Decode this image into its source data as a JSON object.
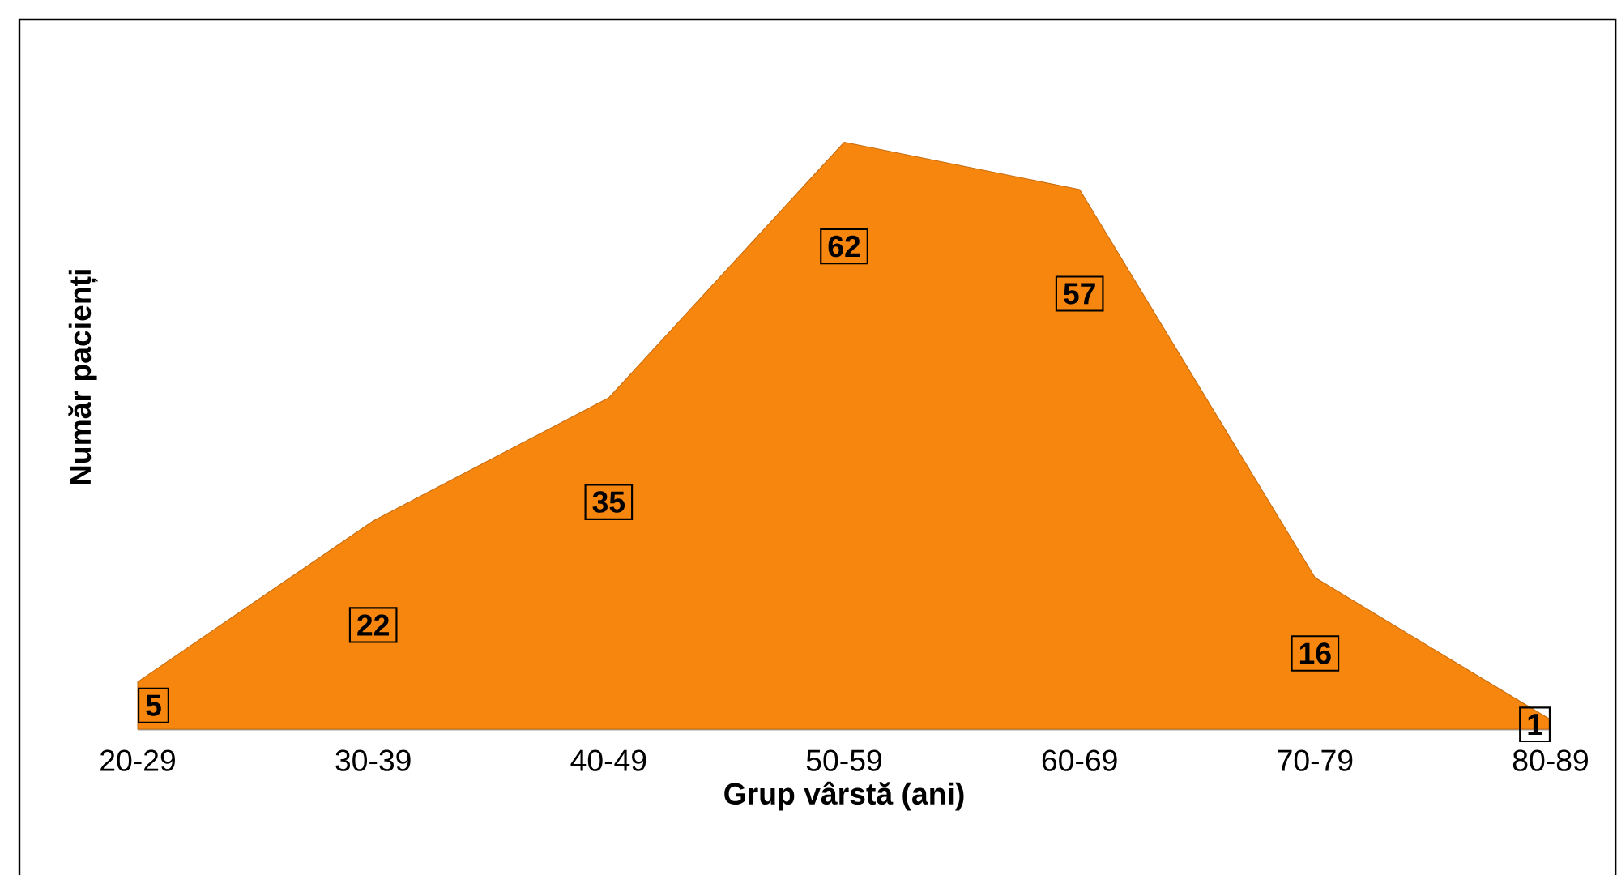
{
  "chart_data": {
    "type": "area",
    "xlabel": "Grup vârstă (ani)",
    "ylabel": "Număr pacienți",
    "categories": [
      "20-29",
      "30-39",
      "40-49",
      "50-59",
      "60-69",
      "70-79",
      "80-89"
    ],
    "values": [
      5,
      22,
      35,
      62,
      57,
      16,
      1
    ],
    "color": "#f7860f",
    "data_labels": true,
    "tick_labels": "x"
  }
}
